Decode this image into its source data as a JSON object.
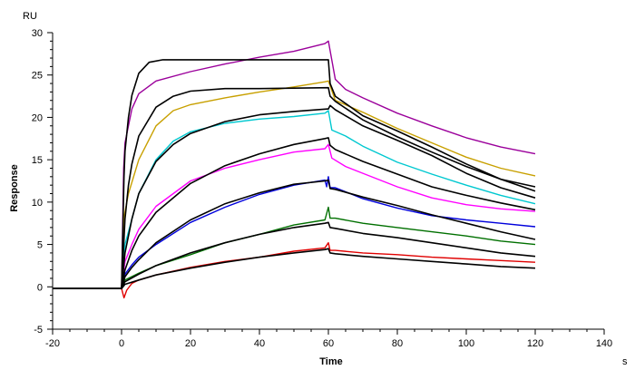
{
  "chart_data": {
    "type": "line",
    "xlabel": "Time",
    "ylabel": "Response",
    "x_unit": "s",
    "y_unit": "RU",
    "xlim": [
      -20,
      140
    ],
    "ylim": [
      -5,
      30
    ],
    "x_ticks": [
      -20,
      0,
      20,
      40,
      60,
      80,
      100,
      120,
      140
    ],
    "y_ticks": [
      -5,
      0,
      5,
      10,
      15,
      20,
      25,
      30
    ],
    "grid": false,
    "injection_start": 0,
    "dissociation_start": 60,
    "end_time": 120,
    "measured_series": [
      {
        "color": "#9b009b",
        "values": [
          [
            -20,
            -0.2
          ],
          [
            0,
            -0.2
          ],
          [
            0.6,
            14
          ],
          [
            1,
            17
          ],
          [
            3,
            21
          ],
          [
            5,
            22.8
          ],
          [
            10,
            24.3
          ],
          [
            20,
            25.4
          ],
          [
            30,
            26.3
          ],
          [
            40,
            27.1
          ],
          [
            50,
            27.8
          ],
          [
            59,
            28.7
          ],
          [
            60,
            29.0
          ],
          [
            62,
            24.5
          ],
          [
            65,
            23.3
          ],
          [
            70,
            22.3
          ],
          [
            80,
            20.5
          ],
          [
            90,
            19.0
          ],
          [
            100,
            17.6
          ],
          [
            110,
            16.5
          ],
          [
            120,
            15.7
          ]
        ]
      },
      {
        "color": "#c8a000",
        "values": [
          [
            -20,
            -0.2
          ],
          [
            0,
            -0.2
          ],
          [
            0.6,
            8
          ],
          [
            2,
            11
          ],
          [
            5,
            15
          ],
          [
            10,
            19
          ],
          [
            15,
            20.8
          ],
          [
            20,
            21.5
          ],
          [
            30,
            22.3
          ],
          [
            40,
            23
          ],
          [
            50,
            23.6
          ],
          [
            59,
            24.2
          ],
          [
            60,
            24.3
          ],
          [
            62,
            22
          ],
          [
            70,
            20.6
          ],
          [
            80,
            18.7
          ],
          [
            90,
            17.0
          ],
          [
            100,
            15.3
          ],
          [
            110,
            14
          ],
          [
            120,
            13.1
          ]
        ]
      },
      {
        "color": "#00c8d0",
        "values": [
          [
            -20,
            -0.2
          ],
          [
            0,
            -0.2
          ],
          [
            1,
            5
          ],
          [
            3,
            8
          ],
          [
            5,
            11
          ],
          [
            10,
            15
          ],
          [
            15,
            17.2
          ],
          [
            20,
            18.3
          ],
          [
            30,
            19.3
          ],
          [
            40,
            19.8
          ],
          [
            50,
            20.1
          ],
          [
            59,
            20.5
          ],
          [
            60,
            20.8
          ],
          [
            61,
            18.5
          ],
          [
            65,
            17.8
          ],
          [
            70,
            16.6
          ],
          [
            80,
            14.7
          ],
          [
            90,
            13.3
          ],
          [
            100,
            12.0
          ],
          [
            110,
            10.8
          ],
          [
            120,
            9.8
          ]
        ]
      },
      {
        "color": "#ff00ff",
        "values": [
          [
            -20,
            -0.2
          ],
          [
            0,
            -0.2
          ],
          [
            1,
            3
          ],
          [
            3,
            5
          ],
          [
            5,
            6.8
          ],
          [
            10,
            9.5
          ],
          [
            20,
            12.5
          ],
          [
            30,
            14.0
          ],
          [
            40,
            15.0
          ],
          [
            50,
            15.9
          ],
          [
            59,
            16.3
          ],
          [
            60,
            16.8
          ],
          [
            61,
            15.2
          ],
          [
            65,
            14.2
          ],
          [
            70,
            13.4
          ],
          [
            80,
            11.8
          ],
          [
            90,
            10.5
          ],
          [
            100,
            9.7
          ],
          [
            110,
            9.2
          ],
          [
            120,
            8.9
          ]
        ]
      },
      {
        "color": "#0000dc",
        "values": [
          [
            -20,
            -0.2
          ],
          [
            0,
            -0.2
          ],
          [
            1,
            1.5
          ],
          [
            3,
            2.6
          ],
          [
            5,
            3.5
          ],
          [
            10,
            5
          ],
          [
            20,
            7.6
          ],
          [
            30,
            9.4
          ],
          [
            40,
            10.9
          ],
          [
            50,
            12
          ],
          [
            59,
            12.6
          ],
          [
            59.5,
            11.8
          ],
          [
            60,
            13.0
          ],
          [
            60.5,
            11.7
          ],
          [
            62,
            11.7
          ],
          [
            70,
            10.4
          ],
          [
            80,
            9.3
          ],
          [
            90,
            8.4
          ],
          [
            100,
            7.9
          ],
          [
            110,
            7.5
          ],
          [
            120,
            7.1
          ]
        ]
      },
      {
        "color": "#007000",
        "values": [
          [
            -20,
            -0.2
          ],
          [
            0,
            -0.2
          ],
          [
            1,
            0.8
          ],
          [
            5,
            1.6
          ],
          [
            10,
            2.5
          ],
          [
            20,
            3.8
          ],
          [
            30,
            5.2
          ],
          [
            40,
            6.2
          ],
          [
            50,
            7.3
          ],
          [
            59,
            7.9
          ],
          [
            60,
            9.4
          ],
          [
            60.5,
            8.1
          ],
          [
            62,
            8.1
          ],
          [
            70,
            7.5
          ],
          [
            80,
            7.0
          ],
          [
            90,
            6.5
          ],
          [
            100,
            6.0
          ],
          [
            110,
            5.4
          ],
          [
            120,
            5.0
          ]
        ]
      },
      {
        "color": "#e00000",
        "values": [
          [
            -20,
            -0.2
          ],
          [
            0,
            -0.2
          ],
          [
            0.7,
            -1.3
          ],
          [
            1.5,
            -0.4
          ],
          [
            3,
            0.4
          ],
          [
            5,
            0.8
          ],
          [
            10,
            1.4
          ],
          [
            20,
            2.3
          ],
          [
            30,
            3.0
          ],
          [
            40,
            3.5
          ],
          [
            50,
            4.2
          ],
          [
            59,
            4.6
          ],
          [
            60,
            5.2
          ],
          [
            60.5,
            4.3
          ],
          [
            62,
            4.3
          ],
          [
            70,
            4.0
          ],
          [
            80,
            3.8
          ],
          [
            90,
            3.5
          ],
          [
            100,
            3.3
          ],
          [
            110,
            3.1
          ],
          [
            120,
            2.9
          ]
        ]
      }
    ],
    "fit_series": [
      {
        "color": "#000000",
        "values": [
          [
            -20,
            -0.2
          ],
          [
            0,
            -0.2
          ],
          [
            0.7,
            13
          ],
          [
            1,
            16
          ],
          [
            2,
            20
          ],
          [
            3,
            22.6
          ],
          [
            5,
            25.2
          ],
          [
            8,
            26.5
          ],
          [
            12,
            26.8
          ],
          [
            20,
            26.8
          ],
          [
            40,
            26.8
          ],
          [
            60,
            26.8
          ],
          [
            60.5,
            24
          ],
          [
            62,
            22.5
          ],
          [
            70,
            20.2
          ],
          [
            80,
            18.4
          ],
          [
            90,
            16.5
          ],
          [
            100,
            14.5
          ],
          [
            110,
            12.7
          ],
          [
            120,
            11.8
          ]
        ]
      },
      {
        "color": "#000000",
        "values": [
          [
            -20,
            -0.2
          ],
          [
            0,
            -0.2
          ],
          [
            1,
            8
          ],
          [
            2,
            12
          ],
          [
            3,
            14.5
          ],
          [
            5,
            17.8
          ],
          [
            10,
            21.2
          ],
          [
            15,
            22.5
          ],
          [
            20,
            23.1
          ],
          [
            30,
            23.4
          ],
          [
            40,
            23.4
          ],
          [
            60,
            23.5
          ],
          [
            60.5,
            22.5
          ],
          [
            62,
            21.9
          ],
          [
            70,
            19.7
          ],
          [
            80,
            17.7
          ],
          [
            90,
            15.9
          ],
          [
            100,
            14.2
          ],
          [
            110,
            12.7
          ],
          [
            120,
            11.3
          ]
        ]
      },
      {
        "color": "#000000",
        "values": [
          [
            -20,
            -0.2
          ],
          [
            0,
            -0.2
          ],
          [
            1,
            4
          ],
          [
            3,
            8
          ],
          [
            5,
            11
          ],
          [
            10,
            14.8
          ],
          [
            15,
            16.8
          ],
          [
            20,
            18.1
          ],
          [
            30,
            19.5
          ],
          [
            40,
            20.3
          ],
          [
            50,
            20.7
          ],
          [
            60,
            21
          ],
          [
            60.5,
            21.4
          ],
          [
            62,
            20.9
          ],
          [
            70,
            19.0
          ],
          [
            80,
            17.3
          ],
          [
            90,
            15.5
          ],
          [
            100,
            13.4
          ],
          [
            110,
            11.7
          ],
          [
            120,
            10.5
          ]
        ]
      },
      {
        "color": "#000000",
        "values": [
          [
            -20,
            -0.2
          ],
          [
            0,
            -0.2
          ],
          [
            1,
            2
          ],
          [
            3,
            4.3
          ],
          [
            5,
            6
          ],
          [
            10,
            8.8
          ],
          [
            20,
            12.2
          ],
          [
            30,
            14.3
          ],
          [
            40,
            15.7
          ],
          [
            50,
            16.8
          ],
          [
            59,
            17.5
          ],
          [
            60,
            17.6
          ],
          [
            60.5,
            16.7
          ],
          [
            62,
            16.2
          ],
          [
            70,
            14.8
          ],
          [
            80,
            13.3
          ],
          [
            90,
            11.8
          ],
          [
            100,
            10.8
          ],
          [
            110,
            9.9
          ],
          [
            120,
            9.1
          ]
        ]
      },
      {
        "color": "#000000",
        "values": [
          [
            -20,
            -0.2
          ],
          [
            0,
            -0.2
          ],
          [
            1,
            1.2
          ],
          [
            3,
            2.3
          ],
          [
            5,
            3.2
          ],
          [
            10,
            5.2
          ],
          [
            20,
            7.9
          ],
          [
            30,
            9.8
          ],
          [
            40,
            11.1
          ],
          [
            50,
            12.1
          ],
          [
            59,
            12.5
          ],
          [
            60,
            12.6
          ],
          [
            60.5,
            11.6
          ],
          [
            62,
            11.5
          ],
          [
            70,
            10.6
          ],
          [
            80,
            9.6
          ],
          [
            90,
            8.5
          ],
          [
            100,
            7.5
          ],
          [
            110,
            6.5
          ],
          [
            120,
            5.6
          ]
        ]
      },
      {
        "color": "#000000",
        "values": [
          [
            -20,
            -0.2
          ],
          [
            0,
            -0.2
          ],
          [
            1,
            0.6
          ],
          [
            5,
            1.5
          ],
          [
            10,
            2.5
          ],
          [
            20,
            4.0
          ],
          [
            30,
            5.2
          ],
          [
            40,
            6.2
          ],
          [
            50,
            7.0
          ],
          [
            59,
            7.5
          ],
          [
            60,
            7.6
          ],
          [
            60.5,
            7.0
          ],
          [
            62,
            6.9
          ],
          [
            70,
            6.3
          ],
          [
            80,
            5.8
          ],
          [
            90,
            5.2
          ],
          [
            100,
            4.6
          ],
          [
            110,
            4.0
          ],
          [
            120,
            3.6
          ]
        ]
      },
      {
        "color": "#000000",
        "values": [
          [
            -20,
            -0.2
          ],
          [
            0,
            -0.2
          ],
          [
            1,
            0.3
          ],
          [
            5,
            0.8
          ],
          [
            10,
            1.4
          ],
          [
            20,
            2.2
          ],
          [
            30,
            2.9
          ],
          [
            40,
            3.5
          ],
          [
            50,
            4.0
          ],
          [
            59,
            4.4
          ],
          [
            60,
            4.5
          ],
          [
            60.5,
            4.0
          ],
          [
            62,
            3.9
          ],
          [
            70,
            3.6
          ],
          [
            80,
            3.3
          ],
          [
            90,
            3.0
          ],
          [
            100,
            2.7
          ],
          [
            110,
            2.4
          ],
          [
            120,
            2.2
          ]
        ]
      }
    ]
  }
}
